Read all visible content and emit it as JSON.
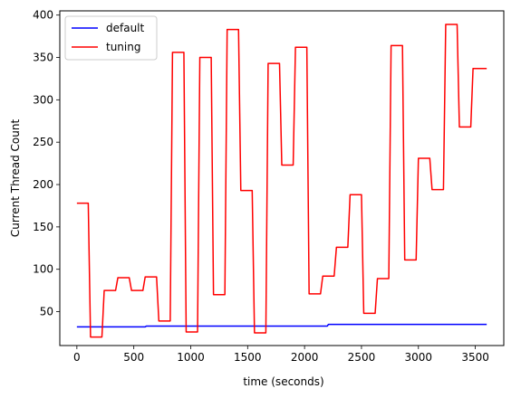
{
  "chart_data": {
    "type": "line",
    "title": "",
    "xlabel": "time (seconds)",
    "ylabel": "Current Thread Count",
    "xlim": [
      -150,
      3750
    ],
    "ylim": [
      10,
      405
    ],
    "xticks": [
      0,
      500,
      1000,
      1500,
      2000,
      2500,
      3000,
      3500
    ],
    "yticks": [
      50,
      100,
      150,
      200,
      250,
      300,
      350,
      400
    ],
    "xtick_labels": [
      "0",
      "500",
      "1000",
      "1500",
      "2000",
      "2500",
      "3000",
      "3500"
    ],
    "ytick_labels": [
      "50",
      "100",
      "150",
      "200",
      "250",
      "300",
      "350",
      "400"
    ],
    "grid": false,
    "legend_position": "upper-left",
    "series": [
      {
        "name": "default",
        "color": "#0000ff",
        "points": [
          [
            0,
            32
          ],
          [
            600,
            32
          ],
          [
            610,
            33
          ],
          [
            2200,
            33
          ],
          [
            2210,
            35
          ],
          [
            3600,
            35
          ]
        ]
      },
      {
        "name": "tuning",
        "color": "#ff0000",
        "points": [
          [
            0,
            178
          ],
          [
            100,
            178
          ],
          [
            120,
            20
          ],
          [
            220,
            20
          ],
          [
            240,
            75
          ],
          [
            340,
            75
          ],
          [
            360,
            90
          ],
          [
            460,
            90
          ],
          [
            480,
            75
          ],
          [
            580,
            75
          ],
          [
            600,
            91
          ],
          [
            700,
            91
          ],
          [
            720,
            39
          ],
          [
            820,
            39
          ],
          [
            840,
            356
          ],
          [
            940,
            356
          ],
          [
            960,
            26
          ],
          [
            1060,
            26
          ],
          [
            1080,
            350
          ],
          [
            1180,
            350
          ],
          [
            1200,
            70
          ],
          [
            1300,
            70
          ],
          [
            1320,
            383
          ],
          [
            1420,
            383
          ],
          [
            1440,
            193
          ],
          [
            1540,
            193
          ],
          [
            1560,
            25
          ],
          [
            1660,
            25
          ],
          [
            1680,
            343
          ],
          [
            1780,
            343
          ],
          [
            1800,
            223
          ],
          [
            1900,
            223
          ],
          [
            1920,
            362
          ],
          [
            2020,
            362
          ],
          [
            2040,
            71
          ],
          [
            2140,
            71
          ],
          [
            2160,
            92
          ],
          [
            2260,
            92
          ],
          [
            2280,
            126
          ],
          [
            2380,
            126
          ],
          [
            2400,
            188
          ],
          [
            2500,
            188
          ],
          [
            2520,
            48
          ],
          [
            2620,
            48
          ],
          [
            2640,
            89
          ],
          [
            2740,
            89
          ],
          [
            2760,
            364
          ],
          [
            2860,
            364
          ],
          [
            2880,
            111
          ],
          [
            2980,
            111
          ],
          [
            3000,
            231
          ],
          [
            3100,
            231
          ],
          [
            3120,
            194
          ],
          [
            3220,
            194
          ],
          [
            3240,
            389
          ],
          [
            3340,
            389
          ],
          [
            3360,
            268
          ],
          [
            3460,
            268
          ],
          [
            3480,
            337
          ],
          [
            3600,
            337
          ]
        ]
      }
    ]
  }
}
